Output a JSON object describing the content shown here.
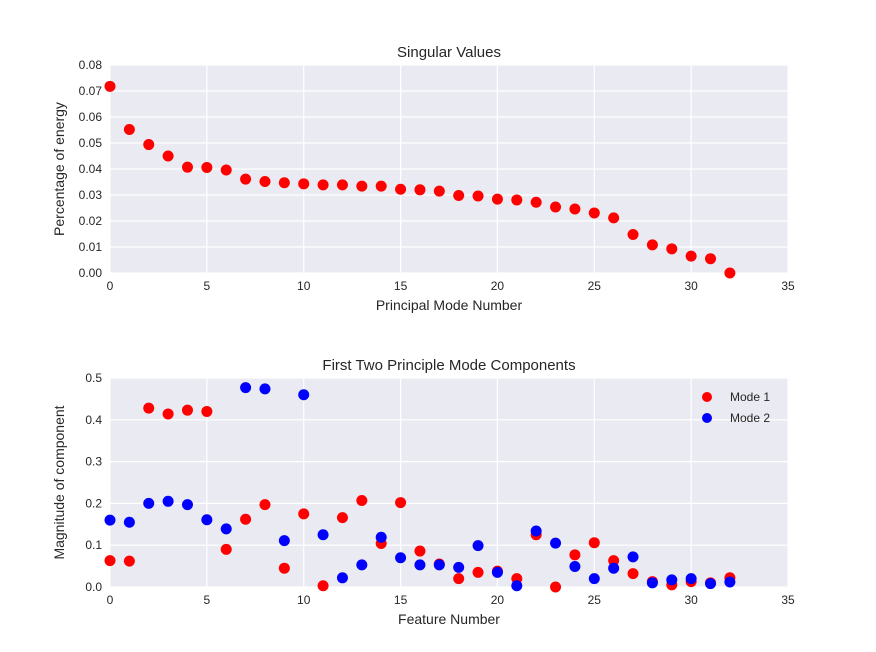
{
  "chart_data": [
    {
      "type": "scatter",
      "title": "Singular Values",
      "xlabel": "Principal Mode Number",
      "ylabel": "Percentage of energy",
      "xlim": [
        0,
        35
      ],
      "ylim": [
        0,
        0.08
      ],
      "xticks": [
        0,
        5,
        10,
        15,
        20,
        25,
        30,
        35
      ],
      "yticks": [
        0.0,
        0.01,
        0.02,
        0.03,
        0.04,
        0.05,
        0.06,
        0.07,
        0.08
      ],
      "ytick_labels": [
        "0.00",
        "0.01",
        "0.02",
        "0.03",
        "0.04",
        "0.05",
        "0.06",
        "0.07",
        "0.08"
      ],
      "grid": true,
      "series": [
        {
          "color": "#ff0000",
          "x": [
            0,
            1,
            2,
            3,
            4,
            5,
            6,
            7,
            8,
            9,
            10,
            11,
            12,
            13,
            14,
            15,
            16,
            17,
            18,
            19,
            20,
            21,
            22,
            23,
            24,
            25,
            26,
            27,
            28,
            29,
            30,
            31,
            32
          ],
          "y": [
            0.0718,
            0.0552,
            0.0494,
            0.045,
            0.0407,
            0.0406,
            0.0396,
            0.0361,
            0.0352,
            0.0347,
            0.0343,
            0.0339,
            0.0339,
            0.0334,
            0.0334,
            0.0322,
            0.032,
            0.0315,
            0.0298,
            0.0296,
            0.0284,
            0.0281,
            0.0272,
            0.0254,
            0.0246,
            0.0231,
            0.0212,
            0.0148,
            0.0108,
            0.0093,
            0.0065,
            0.0055,
            0.0
          ]
        }
      ]
    },
    {
      "type": "scatter",
      "title": "First Two Principle Mode Components",
      "xlabel": "Feature Number",
      "ylabel": "Magnitude of component",
      "xlim": [
        0,
        35
      ],
      "ylim": [
        0,
        0.5
      ],
      "xticks": [
        0,
        5,
        10,
        15,
        20,
        25,
        30,
        35
      ],
      "yticks": [
        0.0,
        0.1,
        0.2,
        0.3,
        0.4,
        0.5
      ],
      "ytick_labels": [
        "0.0",
        "0.1",
        "0.2",
        "0.3",
        "0.4",
        "0.5"
      ],
      "grid": true,
      "legend": "top-right",
      "series": [
        {
          "name": "Mode 1",
          "color": "#ff0000",
          "x": [
            0,
            1,
            2,
            3,
            4,
            5,
            6,
            7,
            8,
            9,
            10,
            11,
            12,
            13,
            14,
            15,
            16,
            17,
            18,
            19,
            20,
            21,
            22,
            23,
            24,
            25,
            26,
            27,
            28,
            29,
            30,
            31,
            32
          ],
          "y": [
            0.063,
            0.062,
            0.428,
            0.414,
            0.423,
            0.42,
            0.09,
            0.162,
            0.197,
            0.045,
            0.175,
            0.003,
            0.166,
            0.207,
            0.104,
            0.202,
            0.086,
            0.055,
            0.02,
            0.035,
            0.038,
            0.02,
            0.125,
            0.0,
            0.077,
            0.106,
            0.063,
            0.032,
            0.013,
            0.005,
            0.013,
            0.01,
            0.022
          ]
        },
        {
          "name": "Mode 2",
          "color": "#0000ff",
          "x": [
            0,
            1,
            2,
            3,
            4,
            5,
            6,
            7,
            8,
            9,
            10,
            11,
            12,
            13,
            14,
            15,
            16,
            17,
            18,
            19,
            20,
            21,
            22,
            23,
            24,
            25,
            26,
            27,
            28,
            29,
            30,
            31,
            32
          ],
          "y": [
            0.16,
            0.155,
            0.2,
            0.205,
            0.197,
            0.161,
            0.139,
            0.477,
            0.474,
            0.111,
            0.46,
            0.125,
            0.022,
            0.053,
            0.119,
            0.07,
            0.053,
            0.053,
            0.047,
            0.099,
            0.035,
            0.003,
            0.134,
            0.105,
            0.049,
            0.02,
            0.045,
            0.072,
            0.01,
            0.017,
            0.02,
            0.008,
            0.012
          ]
        }
      ]
    }
  ]
}
